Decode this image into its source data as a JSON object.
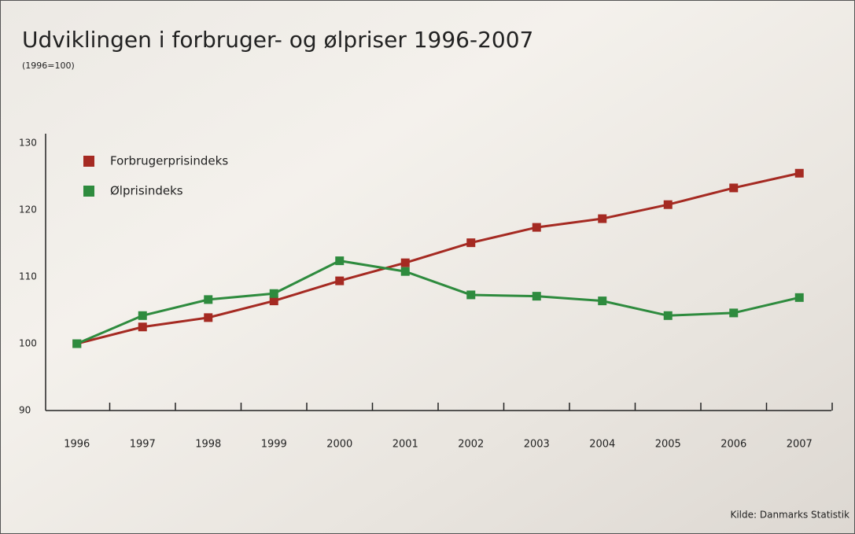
{
  "chart_data": {
    "type": "line",
    "title": "Udviklingen i forbruger- og ølpriser 1996-2007",
    "subtitle": "(1996=100)",
    "source": "Kilde: Danmarks Statistik",
    "categories": [
      "1996",
      "1997",
      "1998",
      "1999",
      "2000",
      "2001",
      "2002",
      "2003",
      "2004",
      "2005",
      "2006",
      "2007"
    ],
    "series": [
      {
        "name": "Forbrugerprisindeks",
        "color": "#a52a22",
        "values": [
          100,
          102.5,
          103.9,
          106.4,
          109.4,
          112.1,
          115.1,
          117.4,
          118.7,
          120.8,
          123.3,
          125.5
        ]
      },
      {
        "name": "Ølprisindeks",
        "color": "#2e8b3e",
        "values": [
          100,
          104.2,
          106.6,
          107.5,
          112.4,
          110.8,
          107.3,
          107.1,
          106.4,
          104.2,
          104.6,
          106.9
        ]
      }
    ],
    "ylim": [
      90,
      130
    ],
    "yticks": [
      90,
      100,
      110,
      120,
      130
    ]
  }
}
